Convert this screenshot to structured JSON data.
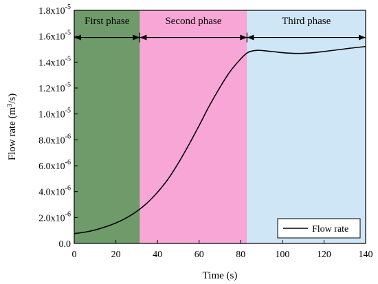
{
  "chart_data": {
    "type": "line",
    "title": "",
    "xlabel": "Time (s)",
    "ylabel_parts": {
      "before": "Flow rate (m",
      "sup": "3",
      "after": "/s)"
    },
    "xlim": [
      0,
      140
    ],
    "ylim": [
      0,
      1.8e-05
    ],
    "x_ticks": [
      {
        "value": 0,
        "label": "0"
      },
      {
        "value": 20,
        "label": "20"
      },
      {
        "value": 40,
        "label": "40"
      },
      {
        "value": 60,
        "label": "60"
      },
      {
        "value": 80,
        "label": "80"
      },
      {
        "value": 100,
        "label": "100"
      },
      {
        "value": 120,
        "label": "120"
      },
      {
        "value": 140,
        "label": "140"
      }
    ],
    "y_ticks": [
      {
        "value": 0,
        "base": "0.0",
        "exp": ""
      },
      {
        "value": 2e-06,
        "base": "2.0x10",
        "exp": "-6"
      },
      {
        "value": 4e-06,
        "base": "4.0x10",
        "exp": "-6"
      },
      {
        "value": 6e-06,
        "base": "6.0x10",
        "exp": "-6"
      },
      {
        "value": 8e-06,
        "base": "8.0x10",
        "exp": "-6"
      },
      {
        "value": 1e-05,
        "base": "1.0x10",
        "exp": "-5"
      },
      {
        "value": 1.2e-05,
        "base": "1.2x10",
        "exp": "-5"
      },
      {
        "value": 1.4e-05,
        "base": "1.4x10",
        "exp": "-5"
      },
      {
        "value": 1.6e-05,
        "base": "1.6x10",
        "exp": "-5"
      },
      {
        "value": 1.8e-05,
        "base": "1.8x10",
        "exp": "-5"
      }
    ],
    "phases": [
      {
        "label": "First phase",
        "x_start": 0,
        "x_end": 31.5,
        "color": "#6f9a6a"
      },
      {
        "label": "Second phase",
        "x_start": 31.5,
        "x_end": 83,
        "color": "#f8a6d6"
      },
      {
        "label": "Third phase",
        "x_start": 83,
        "x_end": 140,
        "color": "#cfe6f7"
      }
    ],
    "phase_arrow_y": 1.59e-05,
    "series": [
      {
        "name": "Flow rate",
        "color": "#000000",
        "x": [
          0,
          5,
          10,
          15,
          20,
          25,
          30,
          35,
          40,
          45,
          50,
          55,
          60,
          65,
          70,
          75,
          80,
          83,
          85,
          88,
          90,
          95,
          100,
          105,
          110,
          115,
          120,
          125,
          130,
          135,
          140
        ],
        "y": [
          7.6e-07,
          8.7e-07,
          1.04e-06,
          1.28e-06,
          1.58e-06,
          1.97e-06,
          2.47e-06,
          3.12e-06,
          3.95e-06,
          4.95e-06,
          6.2e-06,
          7.6e-06,
          9.1e-06,
          1.065e-05,
          1.205e-05,
          1.33e-05,
          1.425e-05,
          1.47e-05,
          1.484e-05,
          1.491e-05,
          1.49e-05,
          1.482e-05,
          1.473e-05,
          1.468e-05,
          1.468e-05,
          1.473e-05,
          1.482e-05,
          1.492e-05,
          1.502e-05,
          1.512e-05,
          1.52e-05
        ]
      }
    ],
    "legend": {
      "placement": "bottom-right",
      "label": "Flow rate"
    },
    "grid": false
  }
}
